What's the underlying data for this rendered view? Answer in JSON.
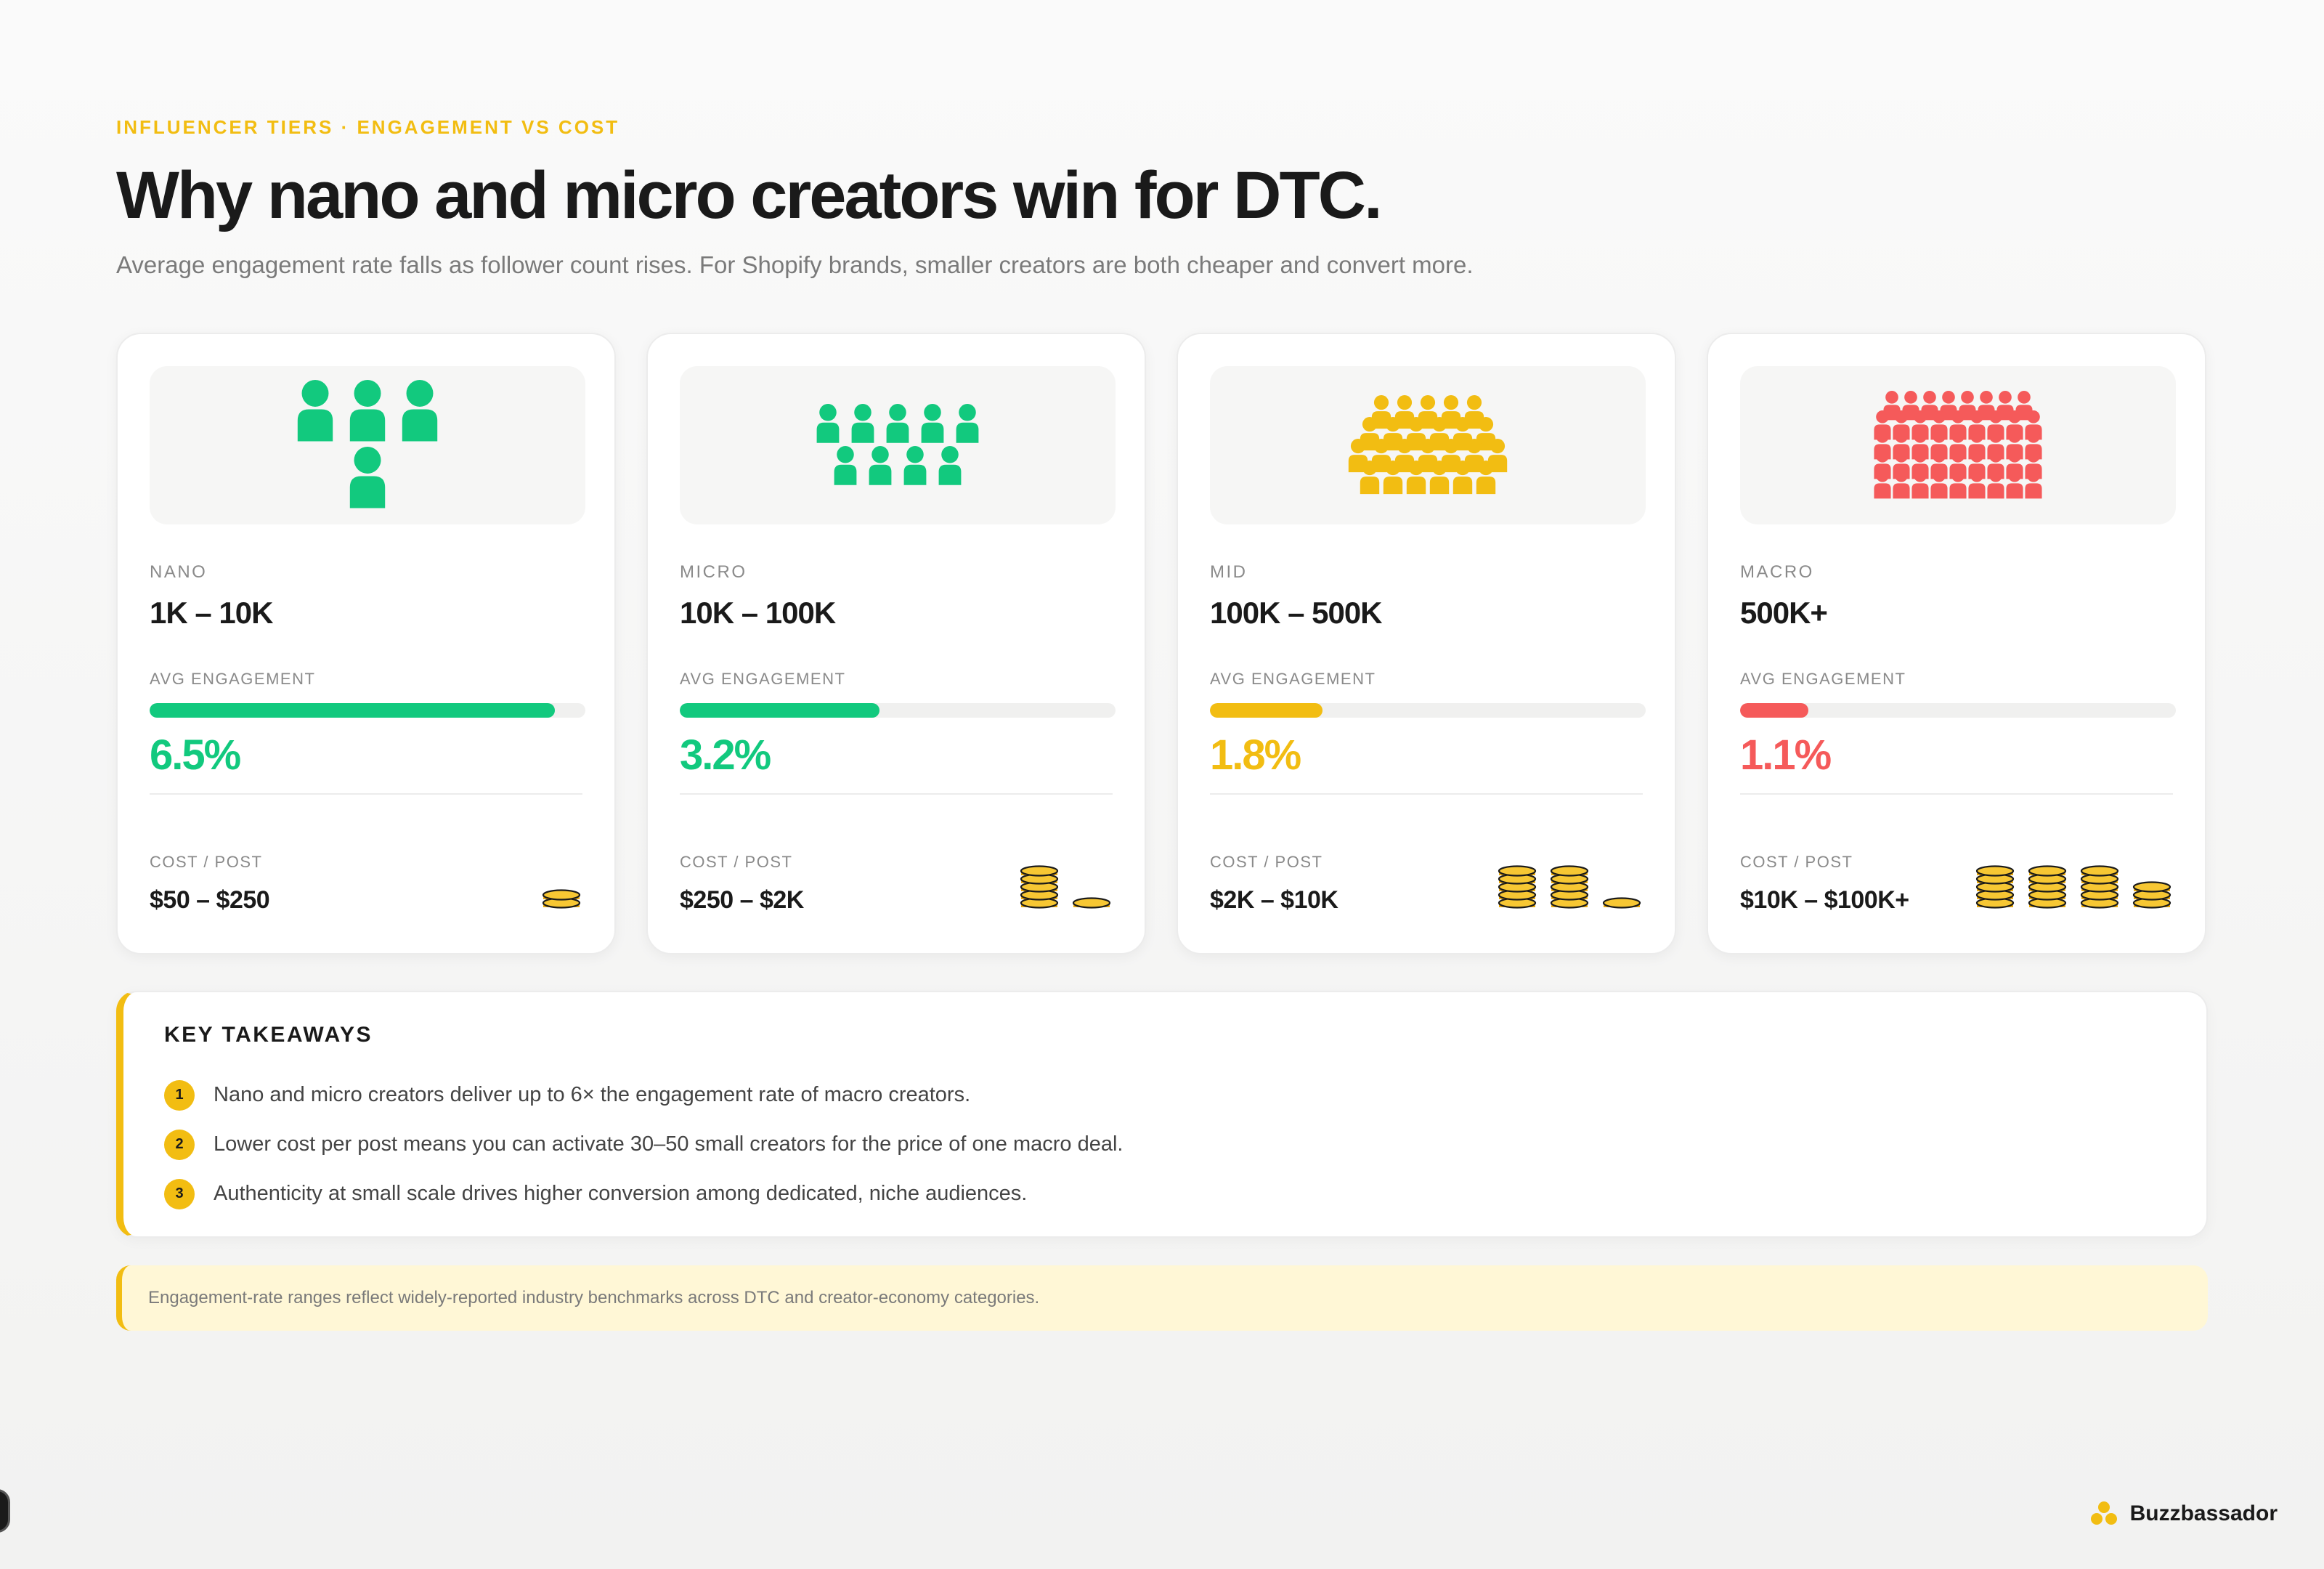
{
  "header": {
    "eyebrow": "INFLUENCER TIERS · ENGAGEMENT VS COST",
    "title": "Why nano and micro creators win for DTC.",
    "subtitle": "Average engagement rate falls as follower count rises. For Shopify brands, smaller creators are both cheaper and convert more."
  },
  "labels": {
    "avg_engagement": "AVG ENGAGEMENT",
    "cost_per_post": "COST / POST"
  },
  "tiers": [
    {
      "name": "NANO",
      "range": "1K – 10K",
      "engagement": "6.5%",
      "engagement_value": 6.5,
      "cost": "$50 – $250",
      "color": "#12c97e",
      "icon": "people-icon",
      "people_count": 4,
      "coin_stacks": [
        2
      ]
    },
    {
      "name": "MICRO",
      "range": "10K – 100K",
      "engagement": "3.2%",
      "engagement_value": 3.2,
      "cost": "$250 – $2K",
      "color": "#12c97e",
      "icon": "people-icon",
      "people_count": 9,
      "coin_stacks": [
        5,
        1
      ]
    },
    {
      "name": "MID",
      "range": "100K – 500K",
      "engagement": "1.8%",
      "engagement_value": 1.8,
      "cost": "$2K – $10K",
      "color": "#f2bd12",
      "icon": "people-icon",
      "people_count": 24,
      "coin_stacks": [
        5,
        5,
        1
      ]
    },
    {
      "name": "MACRO",
      "range": "500K+",
      "engagement": "1.1%",
      "engagement_value": 1.1,
      "cost": "$10K – $100K+",
      "color": "#f55a5a",
      "icon": "people-icon",
      "people_count": 45,
      "coin_stacks": [
        5,
        5,
        5,
        3
      ]
    }
  ],
  "takeaways": {
    "title": "KEY TAKEAWAYS",
    "items": [
      {
        "num": "1",
        "text": "Nano and micro creators deliver up to 6× the engagement rate of macro creators."
      },
      {
        "num": "2",
        "text": "Lower cost per post means you can activate 30–50 small creators for the price of one macro deal."
      },
      {
        "num": "3",
        "text": "Authenticity at small scale drives higher conversion among dedicated, niche audiences."
      }
    ]
  },
  "note": "Engagement-rate ranges reflect widely-reported industry benchmarks across DTC and creator-economy categories.",
  "brand": {
    "name": "Buzzbassador",
    "icon": "bee-cluster-icon",
    "color": "#f2bd12"
  }
}
